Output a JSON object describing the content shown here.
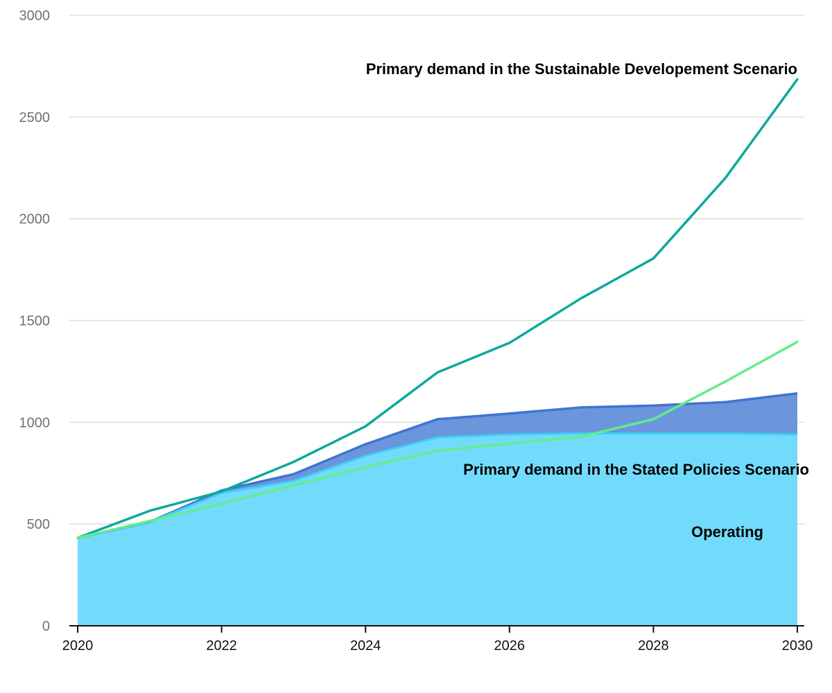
{
  "chart_data": {
    "type": "area",
    "x": [
      2020,
      2021,
      2022,
      2023,
      2024,
      2025,
      2026,
      2027,
      2028,
      2029,
      2030
    ],
    "ylim": [
      0,
      3000
    ],
    "xlim": [
      2020,
      2030
    ],
    "yticks": [
      0,
      500,
      1000,
      1500,
      2000,
      2500,
      3000
    ],
    "xticks": [
      2020,
      2022,
      2024,
      2026,
      2028,
      2030
    ],
    "grid": true,
    "areas": [
      {
        "name": "Operating",
        "values": [
          432,
          510,
          652,
          712,
          835,
          925,
          940,
          945,
          945,
          945,
          940
        ],
        "fill": "#72dbfb",
        "stroke": "#3fd0f6"
      },
      {
        "name": "",
        "values": [
          432,
          510,
          665,
          745,
          892,
          1015,
          1043,
          1073,
          1082,
          1099,
          1142
        ],
        "fill": "#6b96dc",
        "stroke": "#3f74d2"
      }
    ],
    "lines": [
      {
        "name": "Primary demand in the Sustainable Developement Scenario",
        "values": [
          432,
          565,
          660,
          805,
          980,
          1245,
          1390,
          1610,
          1805,
          2200,
          2685
        ],
        "color": "#0ba99a"
      },
      {
        "name": "Primary demand in the Stated Policies Scenario",
        "values": [
          432,
          515,
          600,
          690,
          780,
          860,
          895,
          930,
          1015,
          1200,
          1395
        ],
        "color": "#64ec8a"
      }
    ],
    "annotations": [
      {
        "text": "Primary demand in the Sustainable Developement Scenario",
        "x": 2030,
        "y": 2680,
        "anchor": "end"
      },
      {
        "text": "Primary demand in the Stated Policies Scenario",
        "x": 2030,
        "y": 770,
        "anchor": "end"
      },
      {
        "text": "Operating",
        "x": 2029.5,
        "y": 460,
        "anchor": "end"
      }
    ]
  }
}
